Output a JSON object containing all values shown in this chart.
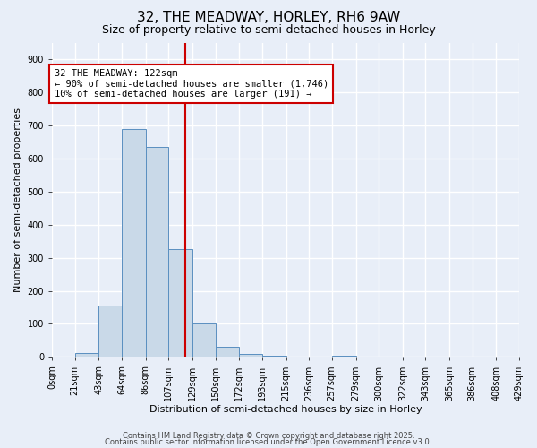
{
  "title": "32, THE MEADWAY, HORLEY, RH6 9AW",
  "subtitle": "Size of property relative to semi-detached houses in Horley",
  "xlabel": "Distribution of semi-detached houses by size in Horley",
  "ylabel": "Number of semi-detached properties",
  "bin_edges": [
    0,
    21,
    43,
    64,
    86,
    107,
    129,
    150,
    172,
    193,
    215,
    236,
    257,
    279,
    300,
    322,
    343,
    365,
    386,
    408,
    429
  ],
  "bin_labels": [
    "0sqm",
    "21sqm",
    "43sqm",
    "64sqm",
    "86sqm",
    "107sqm",
    "129sqm",
    "150sqm",
    "172sqm",
    "193sqm",
    "215sqm",
    "236sqm",
    "257sqm",
    "279sqm",
    "300sqm",
    "322sqm",
    "343sqm",
    "365sqm",
    "386sqm",
    "408sqm",
    "429sqm"
  ],
  "counts": [
    0,
    13,
    155,
    690,
    635,
    325,
    100,
    30,
    10,
    5,
    0,
    0,
    5,
    0,
    0,
    0,
    0,
    0,
    0,
    0
  ],
  "bar_color": "#c9d9e8",
  "bar_edge_color": "#5a8fc0",
  "background_color": "#e8eef8",
  "grid_color": "#ffffff",
  "vline_x": 122,
  "vline_color": "#cc0000",
  "property_label": "32 THE MEADWAY: 122sqm",
  "annotation_line1": "← 90% of semi-detached houses are smaller (1,746)",
  "annotation_line2": "10% of semi-detached houses are larger (191) →",
  "annotation_box_color": "#ffffff",
  "annotation_box_edge": "#cc0000",
  "ylim": [
    0,
    950
  ],
  "yticks": [
    0,
    100,
    200,
    300,
    400,
    500,
    600,
    700,
    800,
    900
  ],
  "footer1": "Contains HM Land Registry data © Crown copyright and database right 2025.",
  "footer2": "Contains public sector information licensed under the Open Government Licence v3.0.",
  "title_fontsize": 11,
  "subtitle_fontsize": 9,
  "axis_label_fontsize": 8,
  "tick_fontsize": 7,
  "annotation_fontsize": 7.5,
  "footer_fontsize": 6
}
